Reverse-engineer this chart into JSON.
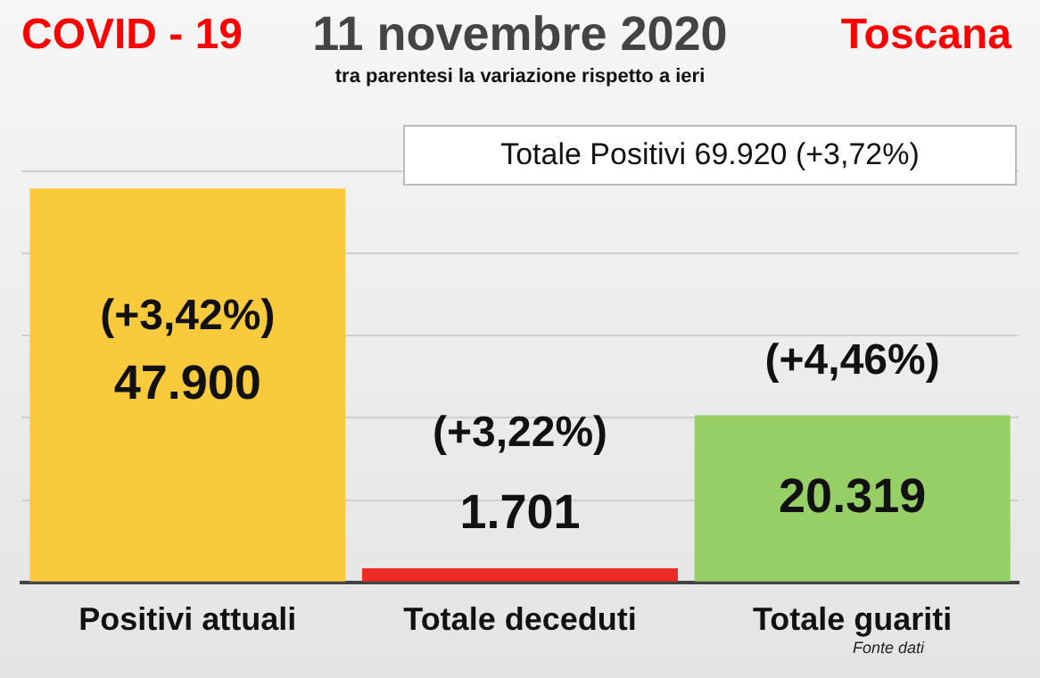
{
  "chart_data": {
    "type": "bar",
    "title": "11 novembre 2020",
    "subtitle": "tra parentesi la variazione rispetto a ieri",
    "categories": [
      "Positivi attuali",
      "Totale deceduti",
      "Totale guariti"
    ],
    "values": [
      47900,
      1701,
      20319
    ],
    "colors": [
      "#f9cb3c",
      "#ee2a24",
      "#97cf67"
    ],
    "value_labels": [
      "47.900",
      "1.701",
      "20.319"
    ],
    "ylim": [
      0,
      50000
    ],
    "yticks": [
      {
        "value": 0,
        "label": null
      },
      {
        "value": 10000,
        "label": null
      },
      {
        "value": 20000,
        "label": null
      },
      {
        "value": 30000,
        "label": null
      },
      {
        "value": 40000,
        "label": null
      },
      {
        "value": 50000,
        "label": null
      }
    ],
    "tick_labels": "x",
    "grid": "y",
    "legend": false,
    "annotations": [
      "COVID - 19",
      "Toscana",
      "Totale Positivi 69.920 (+3,72%)",
      "(+3,42%)",
      "(+3,22%)",
      "(+4,46%)",
      "Fonte dati"
    ]
  }
}
